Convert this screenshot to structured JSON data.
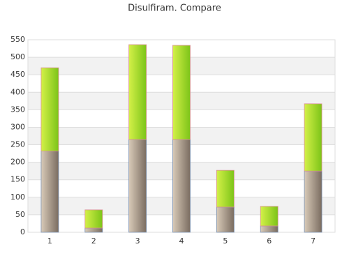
{
  "chart_data": {
    "type": "stacked_bar",
    "title": "Disulfiram. Compare",
    "categories": [
      "1",
      "2",
      "3",
      "4",
      "5",
      "6",
      "7"
    ],
    "series": [
      {
        "color": "#7a6c60",
        "values": [
          232,
          12,
          265,
          265,
          72,
          18,
          175
        ]
      },
      {
        "color": "#7cc418",
        "values": [
          238,
          52,
          271,
          269,
          105,
          56,
          192
        ]
      }
    ],
    "ylim": [
      0,
      550
    ],
    "yticks": [
      0,
      50,
      100,
      150,
      200,
      250,
      300,
      350,
      400,
      450,
      500,
      550
    ],
    "grid": true
  }
}
